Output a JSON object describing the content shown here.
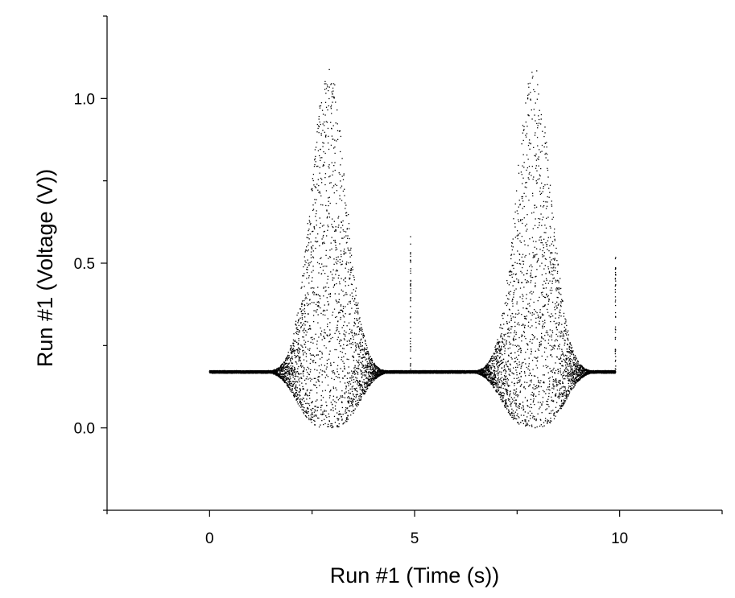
{
  "chart_data": {
    "type": "scatter",
    "title": "",
    "xlabel": "Run #1 (Time (s))",
    "ylabel": "Run #1 (Voltage (V))",
    "xlim": [
      -2.5,
      12.5
    ],
    "ylim": [
      -0.25,
      1.25
    ],
    "x_ticks": [
      0,
      5,
      10
    ],
    "x_tick_labels": [
      "0",
      "5",
      "10"
    ],
    "y_ticks": [
      0.0,
      0.5,
      1.0
    ],
    "y_tick_labels": [
      "0.0",
      "0.5",
      "1.0"
    ],
    "grid": false,
    "marker_color": "#000000",
    "series": [
      {
        "baseline": 0.17,
        "x_range": [
          0,
          9.9
        ],
        "pulses": [
          {
            "center": 2.9,
            "peak": 1.1,
            "trough": 0.0
          },
          {
            "center": 7.9,
            "peak": 1.1,
            "trough": 0.0
          }
        ],
        "spikes": [
          {
            "x": 4.9,
            "min": 0.17,
            "max": 0.59
          },
          {
            "x": 9.9,
            "min": 0.17,
            "max": 0.53
          }
        ]
      }
    ]
  }
}
